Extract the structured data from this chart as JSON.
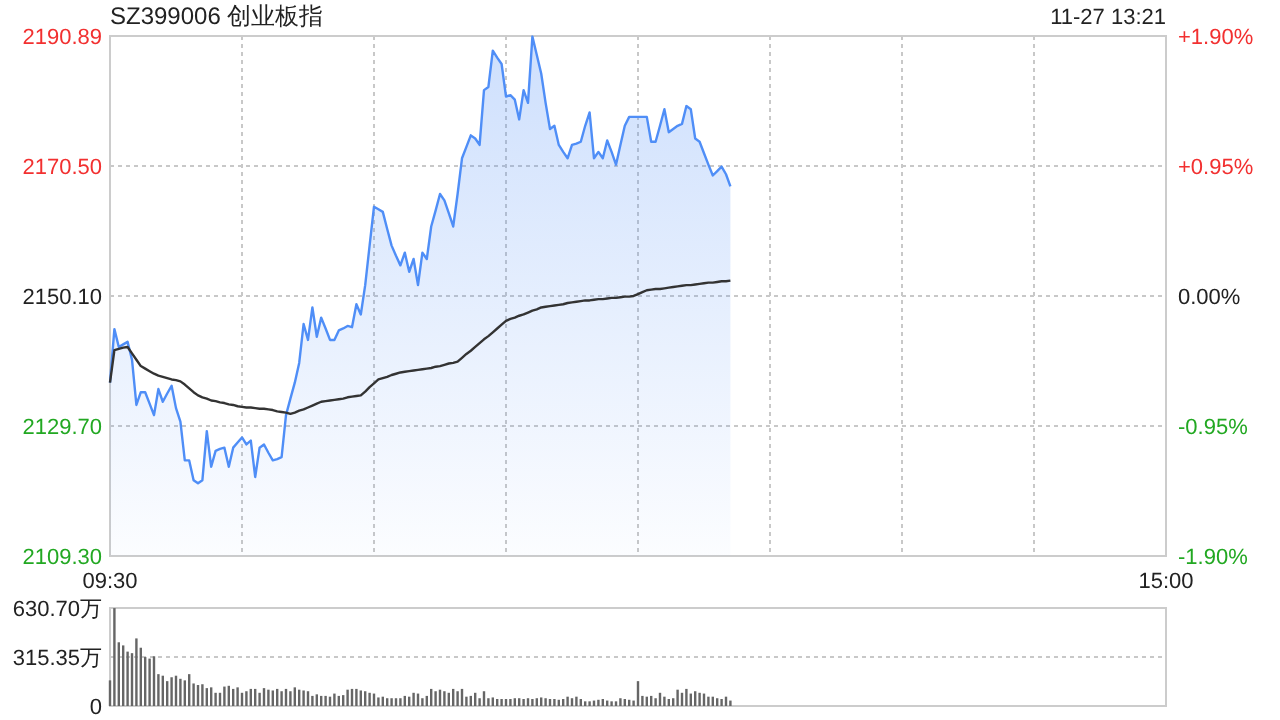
{
  "chart_data": [
    {
      "type": "area",
      "title": "SZ399006 创业板指",
      "subtitle": "11-27 13:21",
      "categories": [
        "09:30",
        null,
        null,
        null,
        null,
        null,
        null,
        null,
        null,
        null,
        null,
        null,
        null,
        null,
        null,
        null,
        null,
        null,
        null,
        null,
        null,
        null,
        null,
        null,
        null,
        null,
        null,
        null,
        null,
        null,
        null,
        null,
        null,
        null,
        null,
        null,
        null,
        null,
        null,
        null,
        null,
        null,
        null,
        null,
        null,
        null,
        null,
        null,
        null,
        null,
        null,
        null,
        null,
        null,
        null,
        null,
        null,
        null,
        null,
        null,
        null,
        null,
        null,
        null,
        null,
        null,
        null,
        null,
        null,
        null,
        null,
        null,
        null,
        null,
        null,
        null,
        null,
        null,
        null,
        null,
        null,
        null,
        null,
        null,
        null,
        null,
        null,
        null,
        null,
        null,
        null,
        null,
        null,
        null,
        null,
        null,
        null,
        null,
        null,
        null,
        null,
        null,
        null,
        null,
        null,
        null,
        null,
        null,
        null,
        null,
        null,
        null,
        null,
        null,
        null,
        null,
        null,
        null,
        null,
        null,
        null,
        null,
        null,
        null,
        null,
        null,
        null,
        null,
        null,
        null,
        null,
        null,
        null,
        null,
        null,
        null,
        null,
        null,
        null,
        null,
        null,
        null,
        null,
        null,
        null,
        null,
        null,
        null,
        null,
        null,
        null,
        null,
        null,
        null,
        null,
        null,
        null,
        null,
        null,
        null,
        null,
        null,
        null,
        null,
        null,
        null,
        null,
        null,
        null,
        null,
        null,
        null,
        null,
        null,
        null,
        null,
        null,
        null,
        null,
        null,
        null,
        null,
        null,
        null,
        null,
        null,
        null,
        null,
        null,
        null,
        null,
        null,
        null,
        null,
        null,
        null,
        null,
        null,
        null,
        null,
        null,
        null,
        null,
        null,
        null,
        null,
        null,
        null,
        null,
        null,
        null,
        null,
        null,
        null,
        null,
        null,
        null,
        null,
        null,
        null,
        null,
        null,
        null,
        null,
        null,
        null,
        null,
        null,
        null,
        null,
        null,
        null,
        null,
        null,
        null,
        null,
        null,
        null,
        null,
        null,
        "15:00"
      ],
      "ylim": [
        2109.3,
        2190.89
      ],
      "yticks": [
        {
          "value": 2109.3,
          "label": "2109.30"
        },
        {
          "value": 2129.7,
          "label": "2129.70"
        },
        {
          "value": 2150.1,
          "label": "2150.10"
        },
        {
          "value": 2170.5,
          "label": "2170.50"
        },
        {
          "value": 2190.89,
          "label": "2190.89"
        }
      ],
      "y2lim": [
        -1.9,
        1.9
      ],
      "y2ticks": [
        {
          "value": -1.9,
          "label": "-1.90%"
        },
        {
          "value": -0.95,
          "label": "-0.95%"
        },
        {
          "value": 0,
          "label": "0.00%"
        },
        {
          "value": 0.95,
          "label": "+0.95%"
        },
        {
          "value": 1.9,
          "label": "+1.90%"
        }
      ],
      "grid": true,
      "series": [
        {
          "color": "#4f8ef7",
          "values": [
            2136.5,
            2144.9,
            2142.1,
            2142.5,
            2142.9,
            2140.1,
            2133.0,
            2135.0,
            2135.0,
            2133.2,
            2131.4,
            2135.5,
            2133.5,
            2134.8,
            2136.0,
            2132.5,
            2130.4,
            2124.3,
            2124.3,
            2121.2,
            2120.7,
            2121.2,
            2128.9,
            2123.3,
            2125.8,
            2126.1,
            2126.3,
            2123.3,
            2126.3,
            2127.1,
            2127.9,
            2126.8,
            2127.4,
            2121.7,
            2126.3,
            2126.8,
            2125.5,
            2124.3,
            2124.5,
            2124.8,
            2131.4,
            2134.0,
            2136.5,
            2139.6,
            2145.7,
            2143.2,
            2148.3,
            2143.7,
            2146.7,
            2145.0,
            2143.2,
            2143.2,
            2144.7,
            2145.0,
            2145.4,
            2145.2,
            2148.8,
            2147.2,
            2151.8,
            2158.0,
            2164.1,
            2163.7,
            2163.3,
            2160.6,
            2158.0,
            2156.4,
            2154.9,
            2156.9,
            2153.9,
            2155.9,
            2151.8,
            2156.9,
            2155.9,
            2161.0,
            2163.5,
            2166.1,
            2165.1,
            2163.1,
            2161.0,
            2166.1,
            2171.7,
            2173.5,
            2175.3,
            2174.8,
            2173.8,
            2182.4,
            2182.9,
            2188.6,
            2187.5,
            2186.5,
            2181.4,
            2181.6,
            2180.9,
            2177.8,
            2182.4,
            2180.4,
            2190.8,
            2187.9,
            2185.0,
            2180.4,
            2176.3,
            2176.8,
            2173.8,
            2172.7,
            2171.7,
            2173.8,
            2174.0,
            2174.3,
            2176.8,
            2178.9,
            2171.7,
            2172.7,
            2171.7,
            2174.5,
            2172.7,
            2170.7,
            2173.8,
            2176.8,
            2178.2,
            2178.2,
            2178.2,
            2178.2,
            2178.2,
            2174.3,
            2174.3,
            2176.8,
            2179.4,
            2175.8,
            2176.3,
            2176.8,
            2177.1,
            2179.9,
            2179.4,
            2174.8,
            2174.3,
            2172.5,
            2170.7,
            2169.0,
            2169.7,
            2170.4,
            2169.2,
            2167.3,
            null,
            null,
            null,
            null,
            null,
            null,
            null,
            null,
            null,
            null,
            null,
            null,
            null,
            null,
            null,
            null,
            null,
            null,
            null,
            null,
            null,
            null,
            null,
            null,
            null,
            null,
            null,
            null,
            null,
            null,
            null,
            null,
            null,
            null,
            null,
            null,
            null,
            null,
            null,
            null,
            null,
            null,
            null,
            null,
            null,
            null,
            null,
            null,
            null,
            null,
            null,
            null,
            null,
            null,
            null,
            null,
            null,
            null,
            null,
            null,
            null,
            null,
            null,
            null,
            null,
            null,
            null,
            null,
            null,
            null,
            null,
            null,
            null,
            null,
            null,
            null,
            null,
            null,
            null,
            null,
            null,
            null,
            null,
            null,
            null,
            null,
            null,
            null,
            null,
            null,
            null,
            null,
            null,
            null,
            null,
            null,
            null,
            null,
            null
          ]
        },
        {
          "type": "line",
          "color": "#333333",
          "values": [
            2136.5,
            2141.6,
            2141.8,
            2142.0,
            2142.1,
            2141.1,
            2140.1,
            2139.1,
            2138.7,
            2138.3,
            2137.9,
            2137.6,
            2137.4,
            2137.2,
            2137.0,
            2136.9,
            2136.7,
            2136.2,
            2135.6,
            2135.0,
            2134.5,
            2134.2,
            2134.0,
            2133.7,
            2133.6,
            2133.4,
            2133.3,
            2133.1,
            2133.0,
            2132.8,
            2132.7,
            2132.6,
            2132.6,
            2132.5,
            2132.4,
            2132.4,
            2132.3,
            2132.2,
            2132.0,
            2131.9,
            2131.8,
            2131.6,
            2131.8,
            2132.1,
            2132.3,
            2132.6,
            2132.9,
            2133.2,
            2133.5,
            2133.6,
            2133.7,
            2133.8,
            2133.9,
            2134.0,
            2134.2,
            2134.3,
            2134.4,
            2134.5,
            2135.1,
            2135.8,
            2136.4,
            2137.0,
            2137.2,
            2137.4,
            2137.7,
            2137.9,
            2138.1,
            2138.2,
            2138.3,
            2138.4,
            2138.5,
            2138.6,
            2138.7,
            2138.8,
            2139.0,
            2139.1,
            2139.3,
            2139.5,
            2139.6,
            2139.8,
            2140.4,
            2141.0,
            2141.5,
            2142.1,
            2142.7,
            2143.3,
            2143.8,
            2144.4,
            2145.0,
            2145.6,
            2146.2,
            2146.5,
            2146.7,
            2147.0,
            2147.2,
            2147.5,
            2147.8,
            2148.0,
            2148.3,
            2148.4,
            2148.5,
            2148.6,
            2148.7,
            2148.8,
            2149.0,
            2149.1,
            2149.2,
            2149.3,
            2149.4,
            2149.4,
            2149.5,
            2149.6,
            2149.6,
            2149.7,
            2149.8,
            2149.8,
            2149.9,
            2150.0,
            2150.0,
            2150.1,
            2150.4,
            2150.7,
            2151.0,
            2151.1,
            2151.2,
            2151.2,
            2151.3,
            2151.4,
            2151.5,
            2151.6,
            2151.7,
            2151.8,
            2151.8,
            2151.9,
            2152.0,
            2152.1,
            2152.2,
            2152.2,
            2152.3,
            2152.4,
            2152.4,
            2152.5,
            null,
            null,
            null,
            null,
            null,
            null,
            null,
            null,
            null,
            null,
            null,
            null,
            null,
            null,
            null,
            null,
            null,
            null,
            null,
            null,
            null,
            null,
            null,
            null,
            null,
            null,
            null,
            null,
            null,
            null,
            null,
            null,
            null,
            null,
            null,
            null,
            null,
            null,
            null,
            null,
            null,
            null,
            null,
            null,
            null,
            null,
            null,
            null,
            null,
            null,
            null,
            null,
            null,
            null,
            null,
            null,
            null,
            null,
            null,
            null,
            null,
            null,
            null,
            null,
            null,
            null,
            null,
            null,
            null,
            null,
            null,
            null,
            null,
            null,
            null,
            null,
            null,
            null,
            null,
            null,
            null,
            null,
            null,
            null,
            null,
            null,
            null,
            null,
            null,
            null,
            null,
            null,
            null,
            null,
            null,
            null,
            null,
            null,
            null
          ]
        }
      ]
    },
    {
      "type": "bar",
      "color": "#666666",
      "tick_labels": "y",
      "grid": "y",
      "categories": [
        null,
        null,
        null,
        null,
        null,
        null,
        null,
        null,
        null,
        null,
        null,
        null,
        null,
        null,
        null,
        null,
        null,
        null,
        null,
        null,
        null,
        null,
        null,
        null,
        null,
        null,
        null,
        null,
        null,
        null,
        null,
        null,
        null,
        null,
        null,
        null,
        null,
        null,
        null,
        null,
        null,
        null,
        null,
        null,
        null,
        null,
        null,
        null,
        null,
        null,
        null,
        null,
        null,
        null,
        null,
        null,
        null,
        null,
        null,
        null,
        null,
        null,
        null,
        null,
        null,
        null,
        null,
        null,
        null,
        null,
        null,
        null,
        null,
        null,
        null,
        null,
        null,
        null,
        null,
        null,
        null,
        null,
        null,
        null,
        null,
        null,
        null,
        null,
        null,
        null,
        null,
        null,
        null,
        null,
        null,
        null,
        null,
        null,
        null,
        null,
        null,
        null,
        null,
        null,
        null,
        null,
        null,
        null,
        null,
        null,
        null,
        null,
        null,
        null,
        null,
        null,
        null,
        null,
        null,
        null,
        null,
        null,
        null,
        null,
        null,
        null,
        null,
        null,
        null,
        null,
        null,
        null,
        null,
        null,
        null,
        null,
        null,
        null,
        null,
        null,
        null,
        null,
        null,
        null,
        null,
        null,
        null,
        null,
        null,
        null,
        null,
        null,
        null,
        null,
        null,
        null,
        null,
        null,
        null,
        null,
        null,
        null,
        null,
        null,
        null,
        null,
        null,
        null,
        null,
        null,
        null,
        null,
        null,
        null,
        null,
        null,
        null,
        null,
        null,
        null,
        null,
        null,
        null,
        null,
        null,
        null,
        null,
        null,
        null,
        null,
        null,
        null,
        null,
        null,
        null,
        null,
        null,
        null,
        null,
        null,
        null,
        null,
        null,
        null,
        null,
        null,
        null,
        null,
        null,
        null,
        null,
        null,
        null,
        null,
        null,
        null,
        null,
        null,
        null,
        null,
        null,
        null,
        null,
        null,
        null,
        null,
        null,
        null,
        null,
        null,
        null,
        null,
        null,
        null,
        null,
        null,
        null,
        null,
        null,
        null,
        null
      ],
      "ylim": [
        0,
        630.7
      ],
      "yticks": [
        0,
        {
          "value": 315.35,
          "label": "315.35万"
        },
        {
          "value": 630.7,
          "label": "630.70万"
        }
      ],
      "values": [
        165,
        630,
        410,
        390,
        350,
        340,
        435,
        375,
        315,
        305,
        320,
        205,
        195,
        160,
        185,
        195,
        175,
        165,
        205,
        145,
        135,
        140,
        115,
        120,
        85,
        85,
        125,
        130,
        110,
        120,
        85,
        95,
        110,
        110,
        85,
        115,
        105,
        100,
        110,
        95,
        110,
        95,
        120,
        105,
        100,
        95,
        65,
        75,
        65,
        65,
        60,
        80,
        65,
        70,
        105,
        110,
        110,
        100,
        95,
        85,
        80,
        55,
        60,
        50,
        50,
        50,
        50,
        65,
        60,
        85,
        80,
        50,
        65,
        110,
        95,
        105,
        95,
        85,
        110,
        95,
        110,
        60,
        65,
        85,
        50,
        95,
        50,
        55,
        45,
        45,
        45,
        45,
        50,
        50,
        45,
        50,
        45,
        50,
        55,
        50,
        45,
        45,
        40,
        45,
        60,
        50,
        60,
        45,
        30,
        30,
        35,
        40,
        45,
        35,
        30,
        30,
        50,
        45,
        40,
        35,
        160,
        65,
        60,
        65,
        50,
        85,
        60,
        45,
        50,
        105,
        85,
        110,
        80,
        95,
        85,
        80,
        60,
        60,
        50,
        45,
        60,
        35,
        null,
        null,
        null,
        null,
        null,
        null,
        null,
        null,
        null,
        null,
        null,
        null,
        null,
        null,
        null,
        null,
        null,
        null,
        null,
        null,
        null,
        null,
        null,
        null,
        null,
        null,
        null,
        null,
        null,
        null,
        null,
        null,
        null,
        null,
        null,
        null,
        null,
        null,
        null,
        null,
        null,
        null,
        null,
        null,
        null,
        null,
        null,
        null,
        null,
        null,
        null,
        null,
        null,
        null,
        null,
        null,
        null,
        null,
        null,
        null,
        null,
        null,
        null,
        null,
        null,
        null,
        null,
        null,
        null,
        null,
        null,
        null,
        null,
        null,
        null,
        null,
        null,
        null,
        null,
        null,
        null,
        null,
        null,
        null,
        null,
        null,
        null,
        null,
        null,
        null,
        null,
        null,
        null,
        null,
        null,
        null,
        null,
        null,
        null
      ]
    }
  ]
}
